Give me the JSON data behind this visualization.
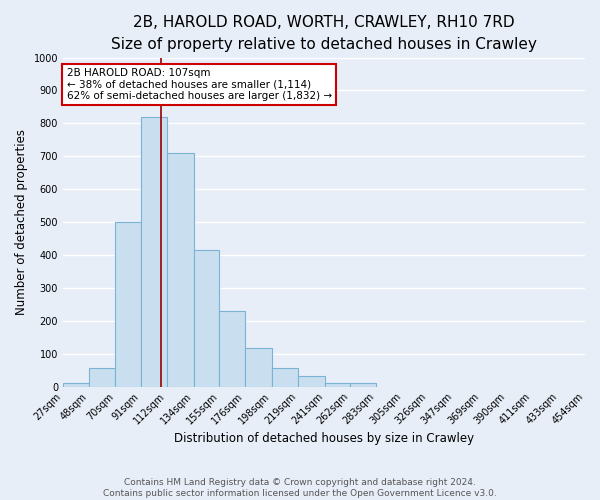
{
  "title": "2B, HAROLD ROAD, WORTH, CRAWLEY, RH10 7RD",
  "subtitle": "Size of property relative to detached houses in Crawley",
  "xlabel": "Distribution of detached houses by size in Crawley",
  "ylabel": "Number of detached properties",
  "bin_edges": [
    27,
    48,
    70,
    91,
    112,
    134,
    155,
    176,
    198,
    219,
    241,
    262,
    283,
    305,
    326,
    347,
    369,
    390,
    411,
    433,
    454
  ],
  "bin_labels": [
    "27sqm",
    "48sqm",
    "70sqm",
    "91sqm",
    "112sqm",
    "134sqm",
    "155sqm",
    "176sqm",
    "198sqm",
    "219sqm",
    "241sqm",
    "262sqm",
    "283sqm",
    "305sqm",
    "326sqm",
    "347sqm",
    "369sqm",
    "390sqm",
    "411sqm",
    "433sqm",
    "454sqm"
  ],
  "counts": [
    10,
    57,
    500,
    820,
    710,
    415,
    230,
    117,
    57,
    32,
    10,
    10,
    0,
    0,
    0,
    0,
    0,
    0,
    0,
    0
  ],
  "bar_color": "#c9dff0",
  "bar_edge_color": "#7ab3d4",
  "property_size": 107,
  "vline_color": "#990000",
  "annotation_text": "2B HAROLD ROAD: 107sqm\n← 38% of detached houses are smaller (1,114)\n62% of semi-detached houses are larger (1,832) →",
  "annotation_box_color": "#ffffff",
  "annotation_box_edge_color": "#cc0000",
  "ylim": [
    0,
    1000
  ],
  "footer_line1": "Contains HM Land Registry data © Crown copyright and database right 2024.",
  "footer_line2": "Contains public sector information licensed under the Open Government Licence v3.0.",
  "background_color": "#e8eef8",
  "grid_color": "#ffffff",
  "title_fontsize": 11,
  "subtitle_fontsize": 9.5,
  "axis_label_fontsize": 8.5,
  "tick_fontsize": 7,
  "footer_fontsize": 6.5,
  "annotation_fontsize": 7.5
}
